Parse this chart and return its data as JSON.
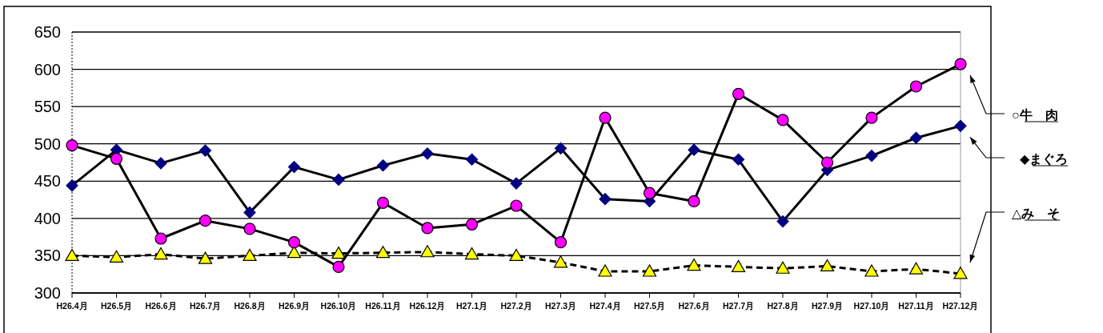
{
  "chart_data": {
    "type": "line",
    "categories": [
      "H26.4月",
      "H26.5月",
      "H26.6月",
      "H26.7月",
      "H26.8月",
      "H26.9月",
      "H26.10月",
      "H26.11月",
      "H26.12月",
      "H27.1月",
      "H27.2月",
      "H27.3月",
      "H27.4月",
      "H27.5月",
      "H27.6月",
      "H27.7月",
      "H27.8月",
      "H27.9月",
      "H27.10月",
      "H27.11月",
      "H27.12月"
    ],
    "series": [
      {
        "name": "○牛　肉",
        "color": "#ff00ff",
        "marker": "circle",
        "line_style": "solid",
        "values": [
          498,
          480,
          373,
          397,
          386,
          368,
          335,
          421,
          387,
          392,
          417,
          368,
          535,
          434,
          423,
          567,
          532,
          475,
          535,
          577,
          607
        ]
      },
      {
        "name": "◆まぐろ",
        "color": "#000080",
        "marker": "diamond",
        "line_style": "solid",
        "values": [
          444,
          492,
          474,
          491,
          408,
          469,
          452,
          471,
          487,
          479,
          447,
          494,
          426,
          423,
          492,
          479,
          396,
          465,
          484,
          508,
          524
        ]
      },
      {
        "name": "△み　そ",
        "color": "#ffff00",
        "marker": "triangle",
        "line_style": "dashed",
        "values": [
          350,
          348,
          352,
          346,
          350,
          354,
          353,
          354,
          355,
          352,
          350,
          341,
          329,
          329,
          337,
          335,
          333,
          336,
          329,
          332,
          326
        ]
      }
    ],
    "ylim": [
      300,
      650
    ],
    "yticks": [
      300,
      350,
      400,
      450,
      500,
      550,
      600,
      650
    ],
    "grid": "y",
    "legend": "right"
  }
}
